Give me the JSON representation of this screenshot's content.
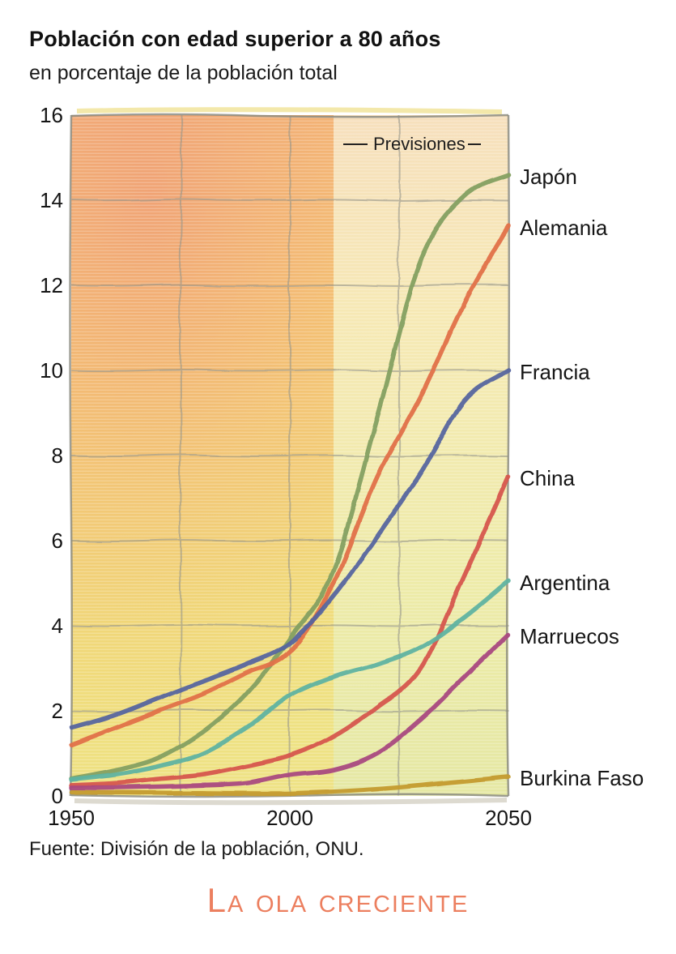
{
  "header": {
    "title": "Población con edad superior a 80 años",
    "subtitle": "en porcentaje de la población total"
  },
  "annotations": {
    "previsiones_label": "Previsiones",
    "forecast_start_year": 2010
  },
  "source": {
    "text": "Fuente: División de la población, ONU."
  },
  "footer": {
    "brand": "La ola creciente",
    "brand_color": "#ec7f5f"
  },
  "colors": {
    "grid": "#96968b",
    "border": "#8d8d83",
    "text": "#151515",
    "accent": "#ec7f5f"
  },
  "chart_data": {
    "type": "line",
    "title": "Población con edad superior a 80 años",
    "subtitle": "en porcentaje de la población total",
    "xlabel": "",
    "ylabel": "",
    "x": [
      1950,
      1960,
      1970,
      1980,
      1990,
      2000,
      2010,
      2020,
      2030,
      2040,
      2050
    ],
    "xticks": [
      1950,
      2000,
      2050
    ],
    "yticks": [
      0,
      2,
      4,
      6,
      8,
      10,
      12,
      14,
      16
    ],
    "xlim": [
      1950,
      2050
    ],
    "ylim": [
      0,
      16
    ],
    "grid": true,
    "legend_position": "right-edge-labels",
    "forecast_start_x": 2010,
    "series": [
      {
        "name": "Japón",
        "color": "#84a061",
        "values": [
          0.4,
          0.6,
          0.9,
          1.5,
          2.4,
          3.7,
          5.3,
          8.9,
          12.6,
          14.1,
          14.6
        ]
      },
      {
        "name": "Alemania",
        "color": "#e1714a",
        "values": [
          1.2,
          1.6,
          2.0,
          2.4,
          2.9,
          3.4,
          5.0,
          7.5,
          9.4,
          11.6,
          13.4
        ]
      },
      {
        "name": "Francia",
        "color": "#56659f",
        "values": [
          1.6,
          1.9,
          2.3,
          2.7,
          3.1,
          3.6,
          4.7,
          6.1,
          7.6,
          9.3,
          10.0
        ]
      },
      {
        "name": "China",
        "color": "#d6564e",
        "values": [
          0.25,
          0.3,
          0.4,
          0.5,
          0.7,
          0.95,
          1.4,
          2.1,
          3.0,
          5.2,
          7.5
        ]
      },
      {
        "name": "Argentina",
        "color": "#5fb3a1",
        "values": [
          0.38,
          0.5,
          0.7,
          1.0,
          1.6,
          2.35,
          2.8,
          3.1,
          3.5,
          4.2,
          5.05
        ]
      },
      {
        "name": "Marruecos",
        "color": "#a94a80",
        "values": [
          0.2,
          0.2,
          0.22,
          0.25,
          0.3,
          0.5,
          0.62,
          1.0,
          1.8,
          2.8,
          3.8
        ]
      },
      {
        "name": "Burkina Faso",
        "color": "#c49b2e",
        "values": [
          0.1,
          0.08,
          0.07,
          0.07,
          0.06,
          0.06,
          0.1,
          0.16,
          0.25,
          0.35,
          0.45
        ]
      }
    ]
  }
}
